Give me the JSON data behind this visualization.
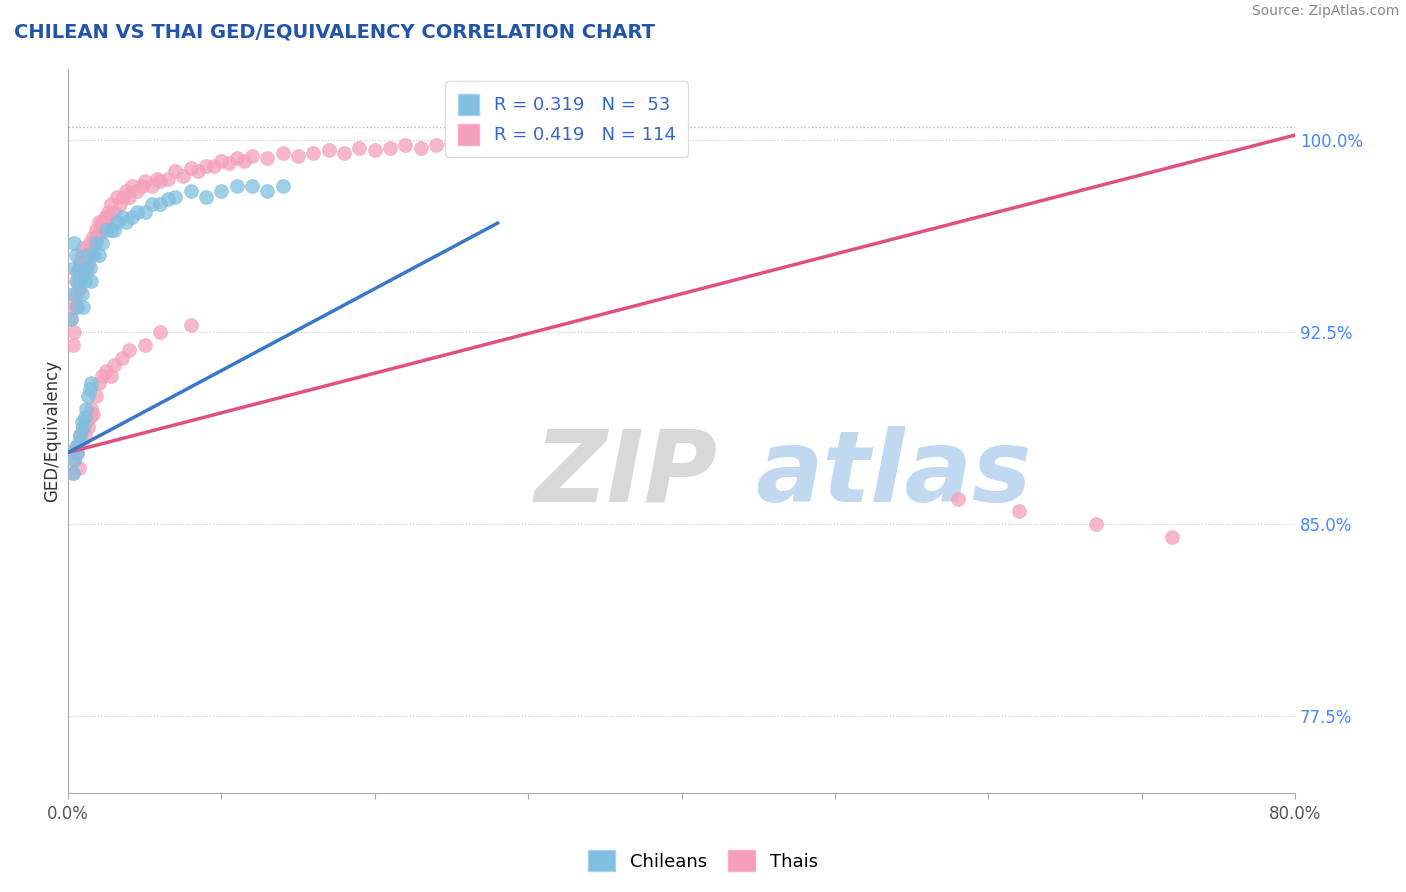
{
  "title": "CHILEAN VS THAI GED/EQUIVALENCY CORRELATION CHART",
  "source_text": "Source: ZipAtlas.com",
  "ylabel": "GED/Equivalency",
  "xlim": [
    0.0,
    0.8
  ],
  "ylim": [
    0.745,
    1.028
  ],
  "yticks": [
    0.775,
    0.85,
    0.925,
    1.0
  ],
  "ytick_labels": [
    "77.5%",
    "85.0%",
    "92.5%",
    "100.0%"
  ],
  "xticks": [
    0.0,
    0.1,
    0.2,
    0.3,
    0.4,
    0.5,
    0.6,
    0.7,
    0.8
  ],
  "xtick_labels": [
    "0.0%",
    "",
    "",
    "",
    "",
    "",
    "",
    "",
    "80.0%"
  ],
  "chilean_color": "#7fbfdf",
  "thai_color": "#f4a0b8",
  "chilean_R": 0.319,
  "chilean_N": 53,
  "thai_R": 0.419,
  "thai_N": 114,
  "chilean_line_color": "#3878c8",
  "thai_line_color": "#e05080",
  "background_color": "#ffffff",
  "chilean_intercept": 0.878,
  "chilean_slope": 0.32,
  "thai_intercept": 0.878,
  "thai_slope": 0.155,
  "chileans_x": [
    0.002,
    0.003,
    0.004,
    0.004,
    0.005,
    0.006,
    0.006,
    0.007,
    0.008,
    0.009,
    0.01,
    0.011,
    0.012,
    0.013,
    0.014,
    0.015,
    0.017,
    0.018,
    0.02,
    0.022,
    0.025,
    0.028,
    0.03,
    0.032,
    0.035,
    0.038,
    0.042,
    0.045,
    0.05,
    0.055,
    0.06,
    0.065,
    0.07,
    0.08,
    0.09,
    0.1,
    0.11,
    0.12,
    0.13,
    0.14,
    0.003,
    0.004,
    0.005,
    0.006,
    0.007,
    0.008,
    0.009,
    0.01,
    0.011,
    0.012,
    0.013,
    0.014,
    0.015
  ],
  "chileans_y": [
    0.93,
    0.94,
    0.95,
    0.96,
    0.955,
    0.945,
    0.935,
    0.95,
    0.945,
    0.94,
    0.935,
    0.945,
    0.95,
    0.955,
    0.95,
    0.945,
    0.955,
    0.96,
    0.955,
    0.96,
    0.965,
    0.965,
    0.965,
    0.968,
    0.97,
    0.968,
    0.97,
    0.972,
    0.972,
    0.975,
    0.975,
    0.977,
    0.978,
    0.98,
    0.978,
    0.98,
    0.982,
    0.982,
    0.98,
    0.982,
    0.87,
    0.875,
    0.88,
    0.878,
    0.882,
    0.885,
    0.89,
    0.888,
    0.892,
    0.895,
    0.9,
    0.903,
    0.905
  ],
  "thais_x": [
    0.002,
    0.003,
    0.003,
    0.004,
    0.004,
    0.005,
    0.005,
    0.006,
    0.006,
    0.007,
    0.007,
    0.008,
    0.008,
    0.009,
    0.009,
    0.01,
    0.01,
    0.011,
    0.012,
    0.012,
    0.013,
    0.014,
    0.014,
    0.015,
    0.016,
    0.017,
    0.018,
    0.019,
    0.02,
    0.021,
    0.022,
    0.023,
    0.024,
    0.025,
    0.026,
    0.027,
    0.028,
    0.03,
    0.032,
    0.034,
    0.036,
    0.038,
    0.04,
    0.042,
    0.045,
    0.048,
    0.05,
    0.055,
    0.058,
    0.06,
    0.065,
    0.07,
    0.075,
    0.08,
    0.085,
    0.09,
    0.095,
    0.1,
    0.105,
    0.11,
    0.115,
    0.12,
    0.13,
    0.14,
    0.15,
    0.16,
    0.17,
    0.18,
    0.19,
    0.2,
    0.21,
    0.22,
    0.23,
    0.24,
    0.25,
    0.26,
    0.27,
    0.28,
    0.29,
    0.3,
    0.315,
    0.33,
    0.35,
    0.37,
    0.39,
    0.003,
    0.004,
    0.005,
    0.006,
    0.007,
    0.008,
    0.009,
    0.01,
    0.011,
    0.012,
    0.013,
    0.014,
    0.015,
    0.016,
    0.018,
    0.02,
    0.022,
    0.025,
    0.028,
    0.03,
    0.035,
    0.04,
    0.05,
    0.06,
    0.08,
    0.58,
    0.62,
    0.67,
    0.72
  ],
  "thais_y": [
    0.93,
    0.92,
    0.935,
    0.925,
    0.94,
    0.935,
    0.945,
    0.94,
    0.948,
    0.942,
    0.95,
    0.945,
    0.952,
    0.948,
    0.955,
    0.95,
    0.958,
    0.952,
    0.948,
    0.955,
    0.952,
    0.958,
    0.96,
    0.956,
    0.962,
    0.96,
    0.965,
    0.962,
    0.968,
    0.964,
    0.968,
    0.965,
    0.97,
    0.968,
    0.972,
    0.97,
    0.975,
    0.972,
    0.978,
    0.975,
    0.978,
    0.98,
    0.978,
    0.982,
    0.98,
    0.982,
    0.984,
    0.982,
    0.985,
    0.984,
    0.985,
    0.988,
    0.986,
    0.989,
    0.988,
    0.99,
    0.99,
    0.992,
    0.991,
    0.993,
    0.992,
    0.994,
    0.993,
    0.995,
    0.994,
    0.995,
    0.996,
    0.995,
    0.997,
    0.996,
    0.997,
    0.998,
    0.997,
    0.998,
    0.999,
    0.998,
    0.999,
    0.999,
    1.0,
    0.999,
    1.0,
    1.0,
    1.0,
    1.0,
    1.0,
    0.87,
    0.875,
    0.88,
    0.878,
    0.872,
    0.885,
    0.882,
    0.888,
    0.885,
    0.89,
    0.888,
    0.892,
    0.895,
    0.893,
    0.9,
    0.905,
    0.908,
    0.91,
    0.908,
    0.912,
    0.915,
    0.918,
    0.92,
    0.925,
    0.928,
    0.86,
    0.855,
    0.85,
    0.845
  ]
}
